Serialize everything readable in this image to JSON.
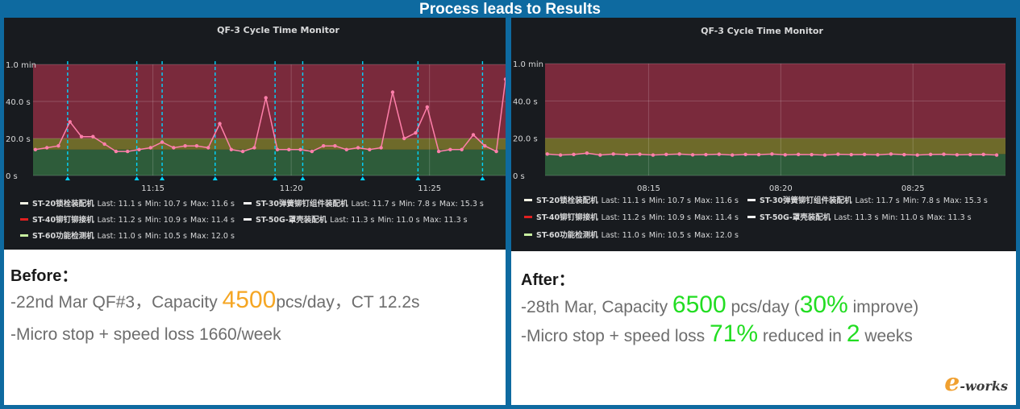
{
  "page": {
    "title": "Process leads to Results"
  },
  "legend": [
    {
      "name": "ST-20锁栓装配机",
      "last": "Last: 11.1 s",
      "min": "Min: 10.7 s",
      "max": "Max: 11.6 s",
      "color": "#f2f2e4"
    },
    {
      "name": "ST-30弹簧铆钉组件装配机",
      "last": "Last: 11.7 s",
      "min": "Min: 7.8 s",
      "max": "Max: 15.3 s",
      "color": "#f2f2f2"
    },
    {
      "name": "ST-40铆钉铆接机",
      "last": "Last: 11.2 s",
      "min": "Min: 10.9 s",
      "max": "Max: 11.4 s",
      "color": "#e02020"
    },
    {
      "name": "ST-50G-罩壳装配机",
      "last": "Last: 11.3 s",
      "min": "Min: 11.0 s",
      "max": "Max: 11.3 s",
      "color": "#f2f2f2"
    },
    {
      "name": "ST-60功能检测机",
      "last": "Last: 11.0 s",
      "min": "Min: 10.5 s",
      "max": "Max: 12.0 s",
      "color": "#c8f0a0"
    }
  ],
  "before": {
    "heading": "Before：",
    "line1_pre": "-22nd Mar QF#3，Capacity ",
    "line1_num": "4500",
    "line1_post": "pcs/day，CT 12.2s",
    "line2": "-Micro stop + speed loss 1660/week"
  },
  "after": {
    "heading": "After：",
    "line1_pre": "-28th Mar, Capacity ",
    "line1_num": "6500",
    "line1_mid": " pcs/day (",
    "line1_pct": "30%",
    "line1_post": " improve)",
    "line2_pre": "-Micro stop + speed loss ",
    "line2_pct": "71%",
    "line2_mid": " reduced in ",
    "line2_num": "2",
    "line2_post": " weeks"
  },
  "logo": {
    "e": "e",
    "text": "-works"
  },
  "colors": {
    "red_zone": "#7a2a3c",
    "yellow_zone": "#6e6a2a",
    "green_zone": "#2e5c3a",
    "series": "#ff7faa",
    "marker": "#00d5ff",
    "panel_bg": "#181b1f"
  },
  "chart_data": [
    {
      "type": "line",
      "title": "QF-3 Cycle Time Monitor",
      "y_unit": "seconds",
      "ylim": [
        0,
        60
      ],
      "yticks": [
        0,
        20,
        40,
        60
      ],
      "ytick_labels": [
        "0 s",
        "20.0 s",
        "40.0 s",
        "1.0 min"
      ],
      "xlim": [
        "11:10:40",
        "11:27:45"
      ],
      "xticks": [
        "11:15",
        "11:20",
        "11:25"
      ],
      "thresholds": [
        {
          "from": 0,
          "to": 14,
          "zone": "green"
        },
        {
          "from": 14,
          "to": 20,
          "zone": "yellow"
        },
        {
          "from": 20,
          "to": 60,
          "zone": "red"
        }
      ],
      "series": [
        {
          "x": [
            "11:10:45",
            "11:11:10",
            "11:11:35",
            "11:12:00",
            "11:12:25",
            "11:12:50",
            "11:13:15",
            "11:13:40",
            "11:14:05",
            "11:14:30",
            "11:14:55",
            "11:15:20",
            "11:15:45",
            "11:16:10",
            "11:16:35",
            "11:17:00",
            "11:17:25",
            "11:17:50",
            "11:18:15",
            "11:18:40",
            "11:19:05",
            "11:19:30",
            "11:19:55",
            "11:20:20",
            "11:20:45",
            "11:21:10",
            "11:21:35",
            "11:22:00",
            "11:22:25",
            "11:22:50",
            "11:23:15",
            "11:23:40",
            "11:24:05",
            "11:24:30",
            "11:24:55",
            "11:25:20",
            "11:25:45",
            "11:26:10",
            "11:26:35",
            "11:27:00",
            "11:27:25",
            "11:27:45"
          ],
          "y": [
            14,
            15,
            16,
            29,
            21,
            21,
            17,
            13,
            13,
            14,
            15,
            18,
            15,
            16,
            16,
            15,
            28,
            14,
            13,
            15,
            42,
            14,
            14,
            14,
            13,
            16,
            16,
            14,
            15,
            14,
            15,
            45,
            20,
            23,
            37,
            13,
            14,
            14,
            22,
            16,
            13,
            52
          ]
        }
      ],
      "event_markers": [
        "11:11:55",
        "11:14:25",
        "11:15:20",
        "11:17:15",
        "11:19:25",
        "11:20:25",
        "11:22:35",
        "11:24:35",
        "11:26:55"
      ]
    },
    {
      "type": "line",
      "title": "QF-3 Cycle Time Monitor",
      "y_unit": "seconds",
      "ylim": [
        0,
        60
      ],
      "yticks": [
        0,
        20,
        40,
        60
      ],
      "ytick_labels": [
        "0 s",
        "20.0 s",
        "40.0 s",
        "1.0 min"
      ],
      "xlim": [
        "08:11:05",
        "08:28:30"
      ],
      "xticks": [
        "08:15",
        "08:20",
        "08:25"
      ],
      "thresholds": [
        {
          "from": 0,
          "to": 11.5,
          "zone": "green"
        },
        {
          "from": 11.5,
          "to": 20,
          "zone": "yellow"
        },
        {
          "from": 20,
          "to": 60,
          "zone": "red"
        }
      ],
      "series": [
        {
          "x": [
            "08:11:10",
            "08:11:40",
            "08:12:10",
            "08:12:40",
            "08:13:10",
            "08:13:40",
            "08:14:10",
            "08:14:40",
            "08:15:10",
            "08:15:40",
            "08:16:10",
            "08:16:40",
            "08:17:10",
            "08:17:40",
            "08:18:10",
            "08:18:40",
            "08:19:10",
            "08:19:40",
            "08:20:10",
            "08:20:40",
            "08:21:10",
            "08:21:40",
            "08:22:10",
            "08:22:40",
            "08:23:10",
            "08:23:40",
            "08:24:10",
            "08:24:40",
            "08:25:10",
            "08:25:40",
            "08:26:10",
            "08:26:40",
            "08:27:10",
            "08:27:40",
            "08:28:10"
          ],
          "y": [
            11.5,
            11.0,
            11.3,
            12.0,
            11.0,
            11.5,
            11.2,
            11.4,
            11.0,
            11.3,
            11.5,
            11.1,
            11.2,
            11.4,
            11.0,
            11.3,
            11.2,
            11.5,
            11.1,
            11.3,
            11.2,
            11.0,
            11.4,
            11.2,
            11.3,
            11.1,
            11.5,
            11.2,
            11.0,
            11.3,
            11.4,
            11.1,
            11.2,
            11.3,
            11.0
          ]
        }
      ]
    }
  ]
}
